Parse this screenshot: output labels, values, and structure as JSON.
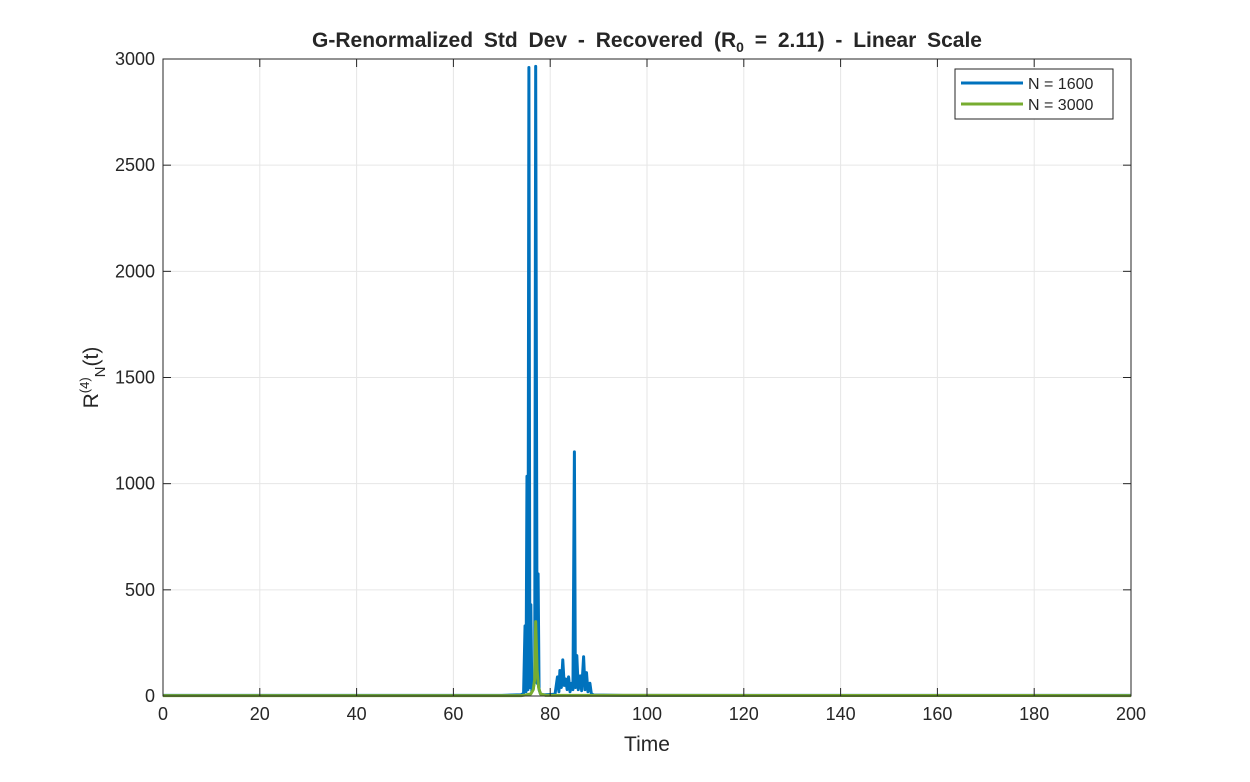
{
  "chart_data": {
    "type": "line",
    "title": {
      "prefix": "G-Renormalized Std Dev - Recovered (R",
      "subscript": "0",
      "suffix": " = 2.11) - Linear Scale"
    },
    "xlabel": "Time",
    "ylabel": {
      "base": "R",
      "superscript": "(4)",
      "subscript": "N",
      "suffix": "(t)"
    },
    "xlim": [
      0,
      200
    ],
    "ylim": [
      0,
      3000
    ],
    "xticks": [
      0,
      20,
      40,
      60,
      80,
      100,
      120,
      140,
      160,
      180,
      200
    ],
    "yticks": [
      0,
      500,
      1000,
      1500,
      2000,
      2500,
      3000
    ],
    "grid": true,
    "legend_position": "top-right",
    "series": [
      {
        "name": "N = 1600",
        "color": "#0072BD",
        "points": [
          [
            0,
            3
          ],
          [
            70,
            3
          ],
          [
            74,
            6
          ],
          [
            74.5,
            12
          ],
          [
            74.8,
            330
          ],
          [
            75.0,
            20
          ],
          [
            75.2,
            1035
          ],
          [
            75.4,
            30
          ],
          [
            75.6,
            2960
          ],
          [
            75.8,
            40
          ],
          [
            76.0,
            430
          ],
          [
            76.2,
            20
          ],
          [
            76.5,
            35
          ],
          [
            76.8,
            80
          ],
          [
            77.0,
            2965
          ],
          [
            77.3,
            60
          ],
          [
            77.5,
            575
          ],
          [
            77.7,
            30
          ],
          [
            78,
            10
          ],
          [
            78.5,
            6
          ],
          [
            79,
            6
          ],
          [
            80,
            7
          ],
          [
            81,
            8
          ],
          [
            81.5,
            90
          ],
          [
            81.8,
            20
          ],
          [
            82,
            120
          ],
          [
            82.3,
            40
          ],
          [
            82.6,
            170
          ],
          [
            82.9,
            50
          ],
          [
            83.2,
            80
          ],
          [
            83.5,
            30
          ],
          [
            83.8,
            90
          ],
          [
            84.1,
            20
          ],
          [
            84.4,
            60
          ],
          [
            84.7,
            30
          ],
          [
            85.0,
            1150
          ],
          [
            85.2,
            40
          ],
          [
            85.5,
            190
          ],
          [
            85.8,
            30
          ],
          [
            86.2,
            95
          ],
          [
            86.5,
            25
          ],
          [
            86.9,
            185
          ],
          [
            87.2,
            30
          ],
          [
            87.5,
            110
          ],
          [
            87.8,
            20
          ],
          [
            88.2,
            60
          ],
          [
            88.5,
            10
          ],
          [
            89,
            5
          ],
          [
            95,
            3
          ],
          [
            200,
            3
          ]
        ]
      },
      {
        "name": "N = 3000",
        "color": "#77AC30",
        "points": [
          [
            0,
            2
          ],
          [
            74,
            2
          ],
          [
            75,
            5
          ],
          [
            76,
            10
          ],
          [
            76.5,
            30
          ],
          [
            76.8,
            80
          ],
          [
            77.0,
            350
          ],
          [
            77.3,
            120
          ],
          [
            77.6,
            40
          ],
          [
            78,
            10
          ],
          [
            79,
            3
          ],
          [
            200,
            2
          ]
        ]
      }
    ]
  }
}
